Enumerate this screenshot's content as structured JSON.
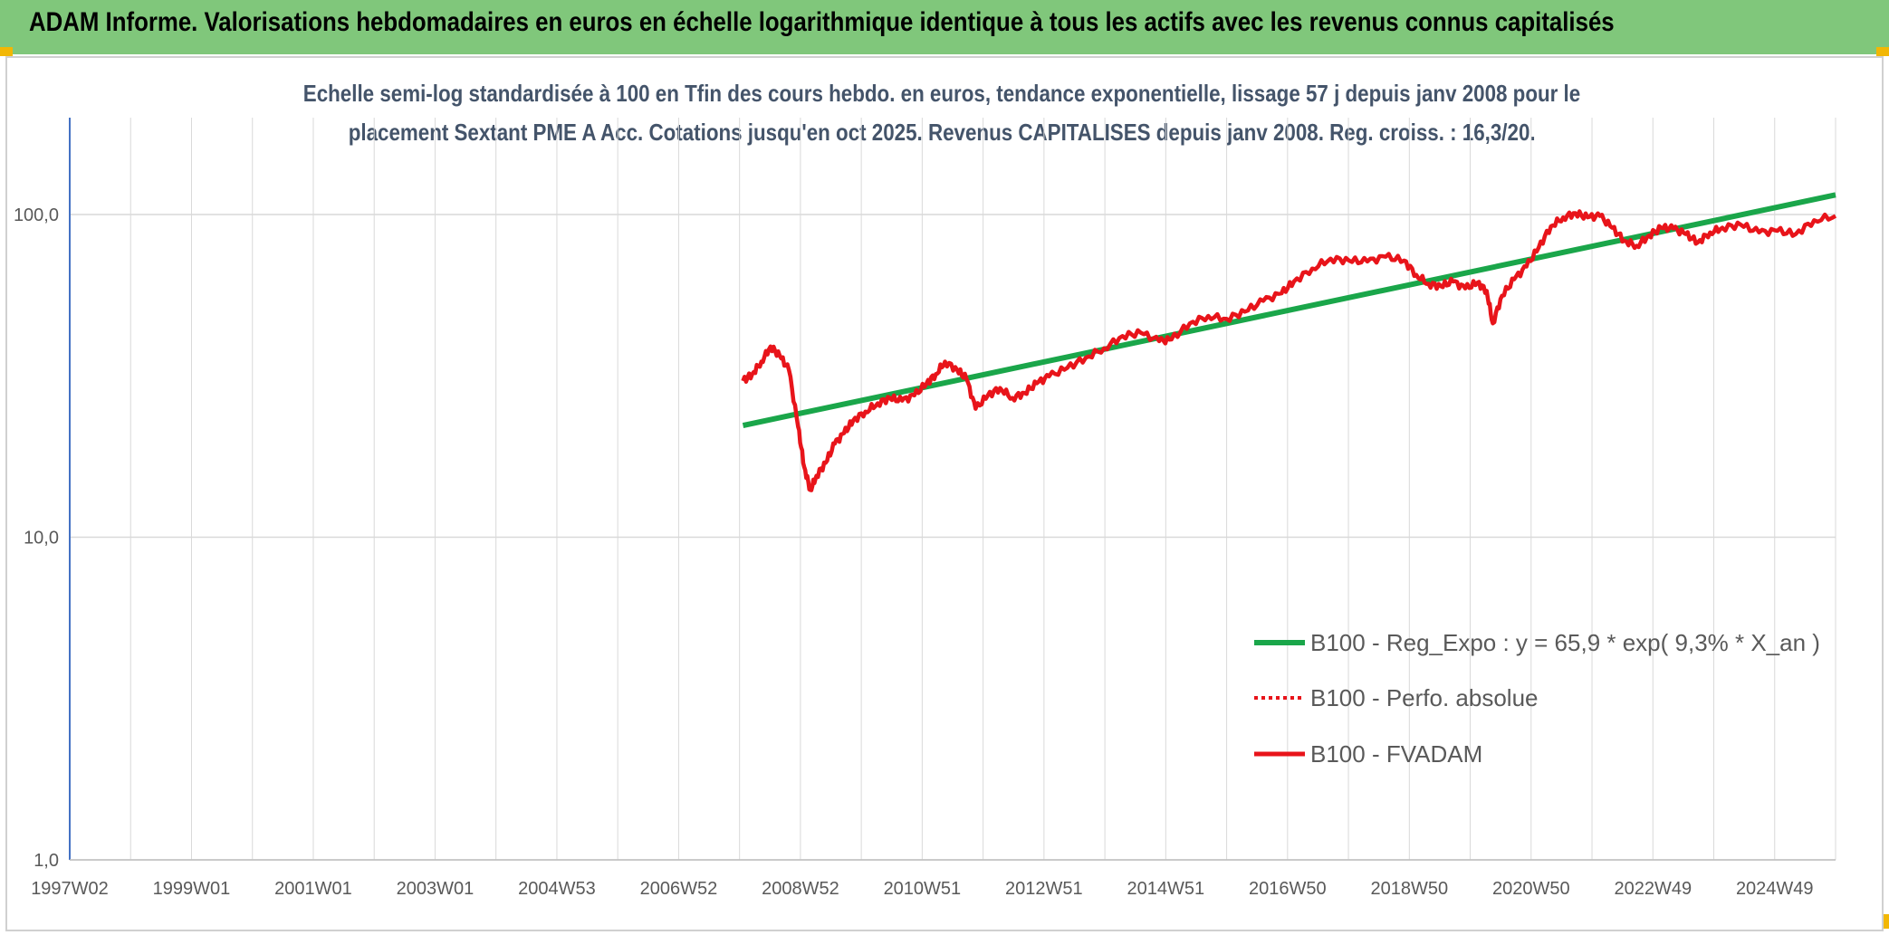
{
  "header": {
    "title": "ADAM Informe. Valorisations hebdomadaires en euros en échelle logarithmique identique à tous les actifs avec les revenus connus capitalisés"
  },
  "chart_data": {
    "type": "line",
    "title_line1": "Echelle semi-log standardisée à 100 en Tfin des cours hebdo. en euros, tendance exponentielle, lissage 57 j depuis janv 2008 pour le",
    "title_line2": "placement Sextant PME A Acc. Cotations jusqu'en oct 2025. Revenus CAPITALISES depuis janv 2008. Reg. croiss. : 16,3/20.",
    "y_scale": "log",
    "ylim": [
      1,
      180
    ],
    "xlim": [
      1997.0,
      2025.85
    ],
    "y_ticks": [
      "1,0",
      "10,0",
      "100,0"
    ],
    "y_tick_values": [
      1,
      10,
      100
    ],
    "x_ticks": [
      "1997W02",
      "1999W01",
      "2001W01",
      "2003W01",
      "2004W53",
      "2006W52",
      "2008W52",
      "2010W51",
      "2012W51",
      "2014W51",
      "2016W50",
      "2018W50",
      "2020W50",
      "2022W49",
      "2024W49"
    ],
    "grid": true,
    "legend_position": "bottom-right",
    "colors": {
      "trend": "#1aa64a",
      "fvadam": "#e8141a",
      "axis": "#4472c4",
      "grid": "#d9d9d9"
    },
    "series": [
      {
        "name": "B100 - Reg_Expo : y = 65,9 * exp( 9,3% *  X_an )",
        "style": "solid-green",
        "x": [
          2008.0,
          2025.85
        ],
        "y": [
          22.2,
          115.0
        ]
      },
      {
        "name": "B100 - Perfo. absolue",
        "style": "dotted-red",
        "x": [],
        "y": []
      },
      {
        "name": "B100 - FVADAM",
        "style": "solid-red",
        "x": [
          2008.0,
          2008.15,
          2008.3,
          2008.45,
          2008.6,
          2008.75,
          2008.9,
          2009.0,
          2009.1,
          2009.2,
          2009.35,
          2009.5,
          2009.65,
          2009.8,
          2010.0,
          2010.2,
          2010.4,
          2010.6,
          2010.8,
          2011.0,
          2011.15,
          2011.3,
          2011.5,
          2011.65,
          2011.8,
          2012.0,
          2012.2,
          2012.4,
          2012.6,
          2012.8,
          2013.0,
          2013.3,
          2013.6,
          2013.9,
          2014.2,
          2014.5,
          2014.8,
          2015.0,
          2015.3,
          2015.6,
          2015.9,
          2016.2,
          2016.5,
          2016.8,
          2017.0,
          2017.3,
          2017.6,
          2017.9,
          2018.2,
          2018.5,
          2018.8,
          2019.0,
          2019.2,
          2019.4,
          2019.6,
          2019.8,
          2020.0,
          2020.15,
          2020.25,
          2020.4,
          2020.6,
          2020.8,
          2021.0,
          2021.2,
          2021.4,
          2021.6,
          2021.8,
          2022.0,
          2022.2,
          2022.4,
          2022.6,
          2022.8,
          2023.0,
          2023.2,
          2023.4,
          2023.6,
          2023.8,
          2024.0,
          2024.3,
          2024.6,
          2024.9,
          2025.2,
          2025.5,
          2025.85
        ],
        "y": [
          30.5,
          32.0,
          35.0,
          39.0,
          36.5,
          33.0,
          22.0,
          16.5,
          14.0,
          15.5,
          17.0,
          19.5,
          21.0,
          23.0,
          24.5,
          26.0,
          27.0,
          26.5,
          27.5,
          30.0,
          32.0,
          35.0,
          33.0,
          31.0,
          25.0,
          27.5,
          29.0,
          27.0,
          28.0,
          30.0,
          31.5,
          33.5,
          36.0,
          38.5,
          42.0,
          43.0,
          40.5,
          41.0,
          46.0,
          48.5,
          47.5,
          50.0,
          54.0,
          57.0,
          62.0,
          68.0,
          73.0,
          72.0,
          71.5,
          74.0,
          72.0,
          65.0,
          61.0,
          60.0,
          62.0,
          59.0,
          61.5,
          58.0,
          46.0,
          56.0,
          63.0,
          69.0,
          79.0,
          92.0,
          98.0,
          101.0,
          98.0,
          99.0,
          91.0,
          83.0,
          80.0,
          86.0,
          91.0,
          90.5,
          87.0,
          82.0,
          88.0,
          91.0,
          93.0,
          88.0,
          89.0,
          87.0,
          96.0,
          99.0
        ]
      }
    ]
  }
}
